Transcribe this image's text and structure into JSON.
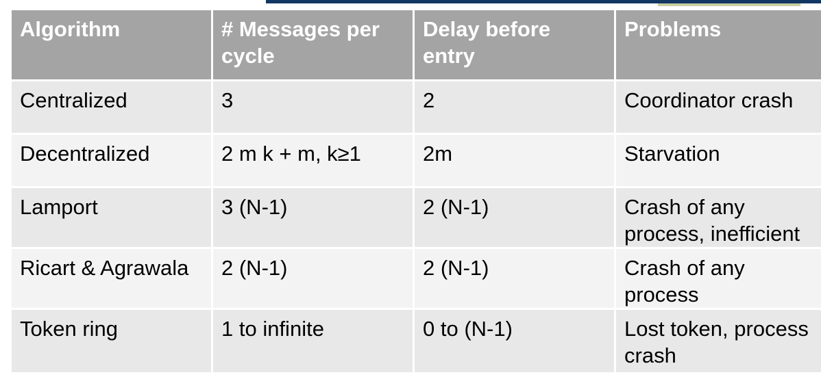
{
  "table": {
    "headers": [
      "Algorithm",
      "# Messages per cycle",
      "Delay before entry",
      "Problems"
    ],
    "rows": [
      [
        "Centralized",
        "3",
        "2",
        "Coordinator crash"
      ],
      [
        "Decentralized",
        "2 m k + m,  k≥1",
        "2m",
        "Starvation"
      ],
      [
        "Lamport",
        "3 (N-1)",
        "2 (N-1)",
        "Crash of any process, inefficient"
      ],
      [
        "Ricart & Agrawala",
        "2 (N-1)",
        "2 (N-1)",
        "Crash of any process"
      ],
      [
        "Token ring",
        "1 to infinite",
        "0 to (N-1)",
        "Lost token, process crash"
      ]
    ]
  },
  "colors": {
    "header_bg": "#a4a4a4",
    "header_text": "#ffffff",
    "row_odd": "#e8e8e8",
    "row_even": "#f3f3f3",
    "top_bar": "#123763"
  }
}
